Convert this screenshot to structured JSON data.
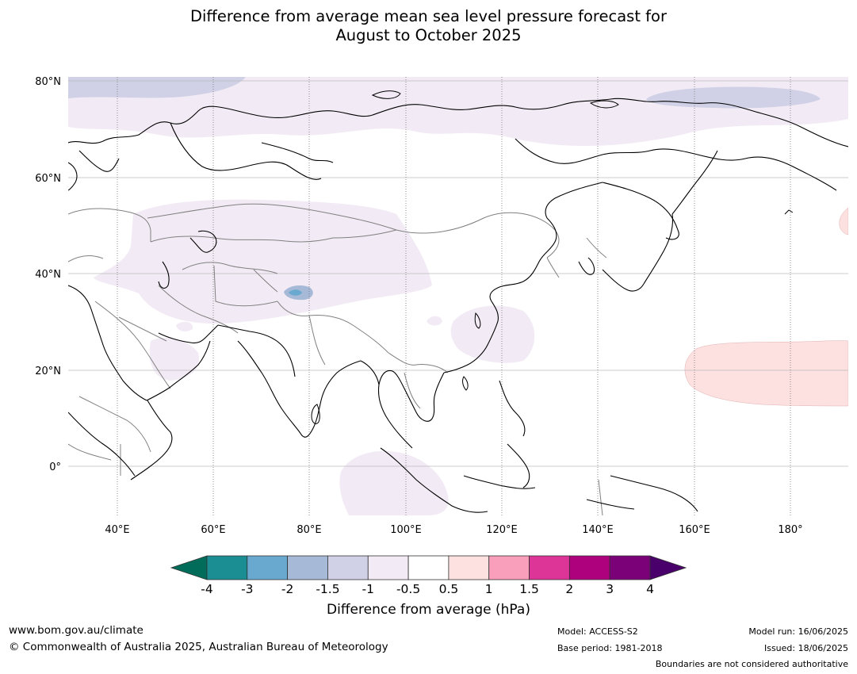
{
  "title": {
    "line1": "Difference from average mean sea level pressure forecast for",
    "line2": "August to October 2025"
  },
  "map": {
    "lat_labels": [
      "80°N",
      "60°N",
      "40°N",
      "20°N",
      "0°"
    ],
    "lon_labels": [
      "40°E",
      "60°E",
      "80°E",
      "100°E",
      "120°E",
      "140°E",
      "160°E",
      "180°"
    ]
  },
  "colorbar": {
    "title": "Difference from average (hPa)",
    "tick_labels": [
      "-4",
      "-3",
      "-2",
      "-1.5",
      "-1",
      "-0.5",
      "0.5",
      "1",
      "1.5",
      "2",
      "3",
      "4"
    ],
    "colors": [
      "#1b8e94",
      "#69a9d0",
      "#a6b9d7",
      "#d0d1e6",
      "#f2ebf5",
      "#ffffff",
      "#fde0e0",
      "#f99fbb",
      "#dd3497",
      "#ae017e",
      "#7a0177"
    ],
    "under_color": "#016c59",
    "over_color": "#49006a"
  },
  "footer": {
    "website": "www.bom.gov.au/climate",
    "copyright": "© Commonwealth of Australia 2025, Australian Bureau of Meteorology",
    "model": "Model: ACCESS-S2",
    "base_period": "Base period: 1981-2018",
    "model_run": "Model run: 16/06/2025",
    "issued": "Issued: 18/06/2025",
    "disclaimer": "Boundaries are not considered authoritative"
  }
}
